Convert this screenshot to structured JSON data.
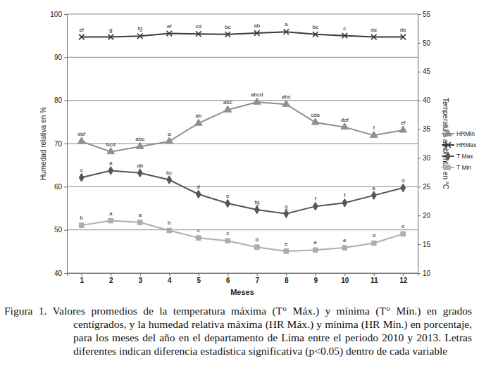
{
  "chart_data": {
    "type": "line",
    "title": "Figura 1. Valores promedios de la temperatura máxima (T° Máx.) y mínima (T° Mín.) en grados centígrados, y la humedad relativa máxima (HR Máx.) y mínima (HR Mín.) en porcentaje, para los meses del año en el departamento de Lima entre el periodo 2010 y 2013. Letras diferentes indican diferencia estadística significativa (p<0.05) dentro de cada variable",
    "x_label": "Meses",
    "y_label": "Humedad relativa en %",
    "y2_label": "Temperatura ambiental en °C",
    "categories": [
      "1",
      "2",
      "3",
      "4",
      "5",
      "6",
      "7",
      "8",
      "9",
      "10",
      "11",
      "12"
    ],
    "ylim": [
      40,
      100
    ],
    "yticks": [
      40,
      50,
      60,
      70,
      80,
      90,
      100
    ],
    "y2lim": [
      10,
      55
    ],
    "y2ticks": [
      10,
      15,
      20,
      25,
      30,
      35,
      40,
      45,
      50,
      55
    ],
    "grid": true,
    "legend": "right",
    "series": [
      {
        "name": "HRMin",
        "color": "#8f8f8f",
        "marker": "triangle",
        "values": [
          70.5,
          68.1,
          69.3,
          70.5,
          74.7,
          77.8,
          79.6,
          79.1,
          74.9,
          73.8,
          71.9,
          73.1
        ],
        "annotations": [
          "def",
          "bcd",
          "abc",
          "a",
          "ab",
          "abc",
          "abcd",
          "abc",
          "cde",
          "def",
          "f",
          "ef"
        ]
      },
      {
        "name": "HRMax",
        "color": "#3a3a3a",
        "marker": "x",
        "values": [
          94.7,
          94.7,
          94.9,
          95.5,
          95.4,
          95.3,
          95.6,
          95.9,
          95.3,
          95.0,
          94.7,
          94.7
        ],
        "annotations": [
          "ef",
          "g",
          "fg",
          "ef",
          "cd",
          "bc",
          "ab",
          "a",
          "bc",
          "c",
          "de",
          "de"
        ]
      },
      {
        "name": "T Max",
        "color": "#555555",
        "marker": "diamond",
        "axis": "y2",
        "values": [
          26.6,
          27.8,
          27.4,
          26.2,
          23.7,
          22.1,
          21.0,
          20.3,
          21.6,
          22.2,
          23.5,
          24.8
        ],
        "annotations": [
          "c",
          "a",
          "ab",
          "bc",
          "d",
          "e",
          "fg",
          "g",
          "f",
          "f",
          "e",
          "d"
        ]
      },
      {
        "name": "T Min",
        "color": "#adadad",
        "marker": "square",
        "axis": "y2",
        "values": [
          18.3,
          19.1,
          18.8,
          17.4,
          16.1,
          15.6,
          14.5,
          13.8,
          14.0,
          14.4,
          15.2,
          16.8
        ],
        "annotations": [
          "b",
          "a",
          "a",
          "b",
          "c",
          "c",
          "d",
          "e",
          "e",
          "e",
          "d",
          "c"
        ]
      }
    ]
  }
}
